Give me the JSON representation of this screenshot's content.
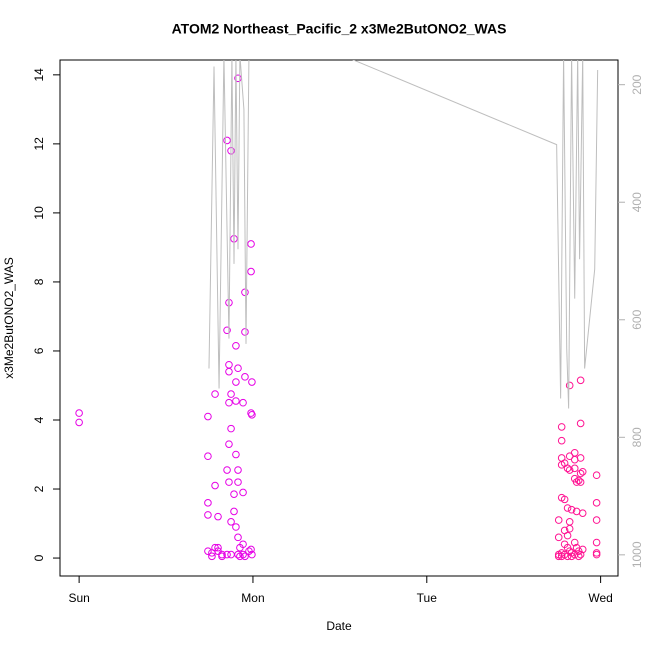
{
  "chart_data": {
    "type": "scatter",
    "title": "ATOM2 Northeast_Pacific_2 x3Me2ButONO2_WAS",
    "x_label": "Date",
    "y_label": "x3Me2ButONO2_WAS",
    "xlim": [
      -0.11,
      3.1
    ],
    "xticks": [
      {
        "value": 0,
        "label": "Sun"
      },
      {
        "value": 1,
        "label": "Mon"
      },
      {
        "value": 2,
        "label": "Tue"
      },
      {
        "value": 3,
        "label": "Wed"
      }
    ],
    "ylim": [
      -0.52,
      14.43
    ],
    "yticks": [
      0,
      2,
      4,
      6,
      8,
      10,
      12,
      14
    ],
    "y2lim": [
      1036,
      158
    ],
    "y2ticks": [
      200,
      400,
      600,
      800,
      1000
    ],
    "series": [
      {
        "color": "#e600e6",
        "x": [
          0,
          0,
          0.741,
          0.741,
          0.741,
          0.741,
          0.741,
          0.764,
          0.764,
          0.782,
          0.782,
          0.782,
          0.799,
          0.799,
          0.799,
          0.822,
          0.822,
          0.851,
          0.851,
          0.851,
          0.851,
          0.862,
          0.862,
          0.862,
          0.862,
          0.862,
          0.862,
          0.874,
          0.874,
          0.874,
          0.874,
          0.874,
          0.891,
          0.891,
          0.891,
          0.902,
          0.902,
          0.902,
          0.902,
          0.902,
          0.914,
          0.914,
          0.914,
          0.914,
          0.914,
          0.914,
          0.925,
          0.925,
          0.943,
          0.943,
          0.943,
          0.943,
          0.954,
          0.954,
          0.954,
          0.954,
          0.977,
          0.989,
          0.989,
          0.989,
          0.989,
          0.994,
          0.994,
          0.994
        ],
        "values": [
          4.2,
          3.93,
          4.1,
          2.95,
          1.6,
          1.25,
          0.2,
          0.05,
          0.15,
          4.75,
          2.1,
          0.3,
          1.2,
          0.3,
          0.2,
          0.1,
          0.05,
          12.1,
          6.6,
          2.55,
          0.1,
          7.4,
          5.6,
          5.4,
          4.5,
          3.3,
          2.2,
          11.8,
          4.75,
          3.75,
          1.05,
          0.1,
          9.25,
          1.85,
          1.35,
          5.1,
          6.15,
          4.55,
          3.0,
          0.9,
          13.9,
          5.5,
          2.55,
          2.2,
          0.6,
          0.1,
          0.05,
          0.3,
          4.5,
          1.9,
          0.4,
          0.1,
          7.7,
          6.55,
          5.25,
          0.05,
          0.2,
          9.1,
          8.3,
          4.2,
          0.25,
          5.1,
          4.15,
          0.1
        ]
      },
      {
        "color": "#ff1493",
        "x": [
          2.759,
          2.759,
          2.759,
          2.759,
          2.776,
          2.776,
          2.776,
          2.776,
          2.776,
          2.776,
          2.776,
          2.793,
          2.793,
          2.793,
          2.793,
          2.793,
          2.81,
          2.81,
          2.81,
          2.81,
          2.81,
          2.822,
          2.822,
          2.822,
          2.822,
          2.822,
          2.822,
          2.833,
          2.833,
          2.833,
          2.851,
          2.851,
          2.851,
          2.851,
          2.851,
          2.851,
          2.862,
          2.862,
          2.862,
          2.874,
          2.874,
          2.874,
          2.885,
          2.885,
          2.885,
          2.885,
          2.885,
          2.885,
          2.897,
          2.897,
          2.897,
          2.977,
          2.977,
          2.977,
          2.977,
          2.977,
          2.977
        ],
        "values": [
          1.1,
          0.6,
          0.1,
          0.05,
          3.8,
          3.4,
          2.9,
          2.7,
          1.75,
          0.15,
          0.05,
          2.75,
          1.7,
          0.8,
          0.4,
          0.1,
          2.6,
          1.45,
          0.65,
          0.3,
          0.05,
          5.0,
          2.95,
          2.55,
          1.05,
          0.85,
          0.2,
          1.4,
          0.15,
          0.05,
          3.05,
          2.85,
          2.6,
          2.3,
          0.45,
          0.1,
          2.2,
          1.35,
          0.3,
          2.25,
          0.2,
          0.05,
          5.15,
          3.9,
          2.9,
          2.45,
          2.2,
          0.1,
          2.5,
          1.3,
          0.25,
          2.4,
          1.6,
          1.1,
          0.45,
          0.15,
          0.1
        ]
      },
      {
        "type": "line",
        "axis": "y2",
        "color": "#bebebe",
        "x": [
          0.747,
          0.776,
          0.805,
          0.833,
          0.862,
          0.879,
          0.891,
          0.902,
          0.914,
          0.925,
          0.948,
          0.96,
          0.977,
          0.994,
          1.27,
          2.747,
          2.77,
          2.787,
          2.805,
          2.816,
          2.833,
          2.851,
          2.868,
          2.879,
          2.897,
          2.908,
          2.966,
          2.983
        ],
        "values": [
          683,
          169,
          717,
          150,
          632,
          150,
          505,
          150,
          480,
          150,
          242,
          641,
          150,
          150,
          120,
          302,
          734,
          150,
          649,
          751,
          150,
          564,
          150,
          497,
          150,
          683,
          514,
          175
        ]
      }
    ]
  }
}
